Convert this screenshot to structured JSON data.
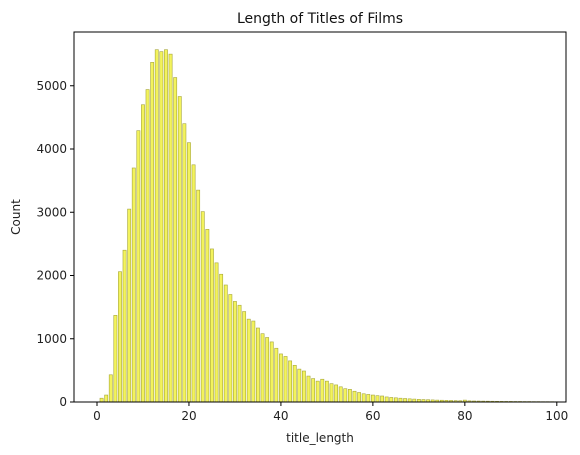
{
  "chart_data": {
    "type": "bar",
    "title": "Length of Titles of Films",
    "xlabel": "title_length",
    "ylabel": "Count",
    "xlim": [
      -5,
      102
    ],
    "ylim": [
      0,
      5850
    ],
    "x_ticks": [
      0,
      20,
      40,
      60,
      80,
      100
    ],
    "y_ticks": [
      0,
      1000,
      2000,
      3000,
      4000,
      5000
    ],
    "grid": false,
    "colors": {
      "bar_fill": "#f3f35c",
      "bar_edge": "#a7a73a"
    },
    "x": [
      1,
      2,
      3,
      4,
      5,
      6,
      7,
      8,
      9,
      10,
      11,
      12,
      13,
      14,
      15,
      16,
      17,
      18,
      19,
      20,
      21,
      22,
      23,
      24,
      25,
      26,
      27,
      28,
      29,
      30,
      31,
      32,
      33,
      34,
      35,
      36,
      37,
      38,
      39,
      40,
      41,
      42,
      43,
      44,
      45,
      46,
      47,
      48,
      49,
      50,
      51,
      52,
      53,
      54,
      55,
      56,
      57,
      58,
      59,
      60,
      61,
      62,
      63,
      64,
      65,
      66,
      67,
      68,
      69,
      70,
      71,
      72,
      73,
      74,
      75,
      76,
      77,
      78,
      79,
      80,
      81,
      82,
      83,
      84,
      85,
      86,
      87,
      88,
      89,
      90,
      91,
      92,
      93,
      94,
      95,
      96,
      97,
      98,
      99,
      100
    ],
    "values": [
      60,
      110,
      430,
      1370,
      2060,
      2400,
      3050,
      3700,
      4290,
      4700,
      4940,
      5370,
      5570,
      5540,
      5570,
      5500,
      5130,
      4830,
      4400,
      4100,
      3750,
      3350,
      3010,
      2730,
      2420,
      2200,
      2020,
      1850,
      1700,
      1590,
      1530,
      1430,
      1310,
      1280,
      1170,
      1080,
      1020,
      950,
      850,
      760,
      720,
      650,
      580,
      520,
      490,
      410,
      370,
      330,
      360,
      330,
      290,
      270,
      240,
      210,
      200,
      170,
      150,
      130,
      120,
      110,
      100,
      95,
      80,
      72,
      66,
      60,
      55,
      50,
      46,
      42,
      39,
      36,
      33,
      30,
      28,
      26,
      24,
      22,
      20,
      30,
      18,
      16,
      15,
      14,
      13,
      12,
      11,
      10,
      9,
      9,
      8,
      8,
      7,
      7,
      6,
      6,
      5,
      5,
      5,
      4
    ]
  }
}
